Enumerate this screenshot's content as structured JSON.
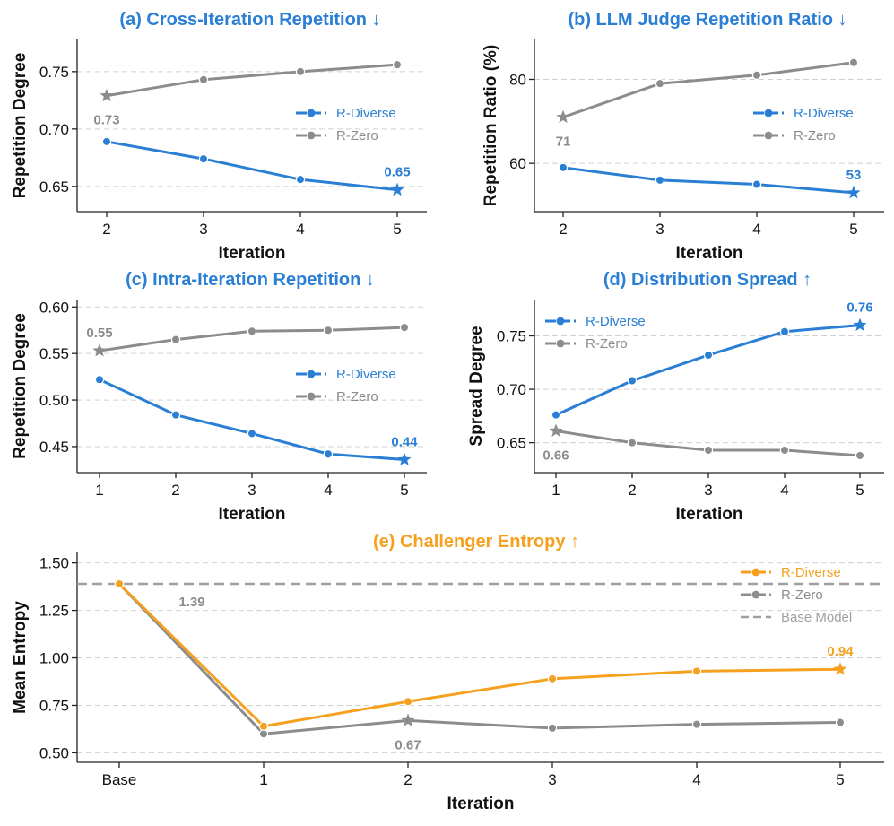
{
  "colors": {
    "diverse_blue": "#2a7fd4",
    "zero_gray": "#8c8c8c",
    "diverse_orange": "#f5a01e",
    "base_gray": "#a0a0a0",
    "grid": "#d0d0d0",
    "axis": "#222222"
  },
  "chart_data": [
    {
      "id": "a",
      "type": "line",
      "title": "(a) Cross-Iteration Repetition ↓",
      "title_color": "#2a7fd4",
      "xlabel": "Iteration",
      "ylabel": "Repetition Degree",
      "categories": [
        "2",
        "3",
        "4",
        "5"
      ],
      "ylim": [
        0.628,
        0.778
      ],
      "yticks": [
        0.65,
        0.7,
        0.75
      ],
      "ytick_labels": [
        "0.65",
        "0.70",
        "0.75"
      ],
      "series": [
        {
          "name": "R-Diverse",
          "color": "#2a7fd4",
          "values": [
            0.689,
            0.674,
            0.656,
            0.647
          ],
          "star_index": 3,
          "annotation": "0.65",
          "annotation_anchor": "above"
        },
        {
          "name": "R-Zero",
          "color": "#8c8c8c",
          "values": [
            0.729,
            0.743,
            0.75,
            0.756
          ],
          "star_index": 0,
          "annotation": "0.73",
          "annotation_anchor": "below"
        }
      ],
      "legend": [
        "R-Diverse",
        "R-Zero"
      ],
      "legend_position": "right"
    },
    {
      "id": "b",
      "type": "line",
      "title": "(b) LLM Judge Repetition Ratio ↓",
      "title_color": "#2a7fd4",
      "xlabel": "Iteration",
      "ylabel": "Repetition Ratio (%)",
      "categories": [
        "2",
        "3",
        "4",
        "5"
      ],
      "ylim": [
        48.5,
        89.5
      ],
      "yticks": [
        60,
        80
      ],
      "ytick_labels": [
        "60",
        "80"
      ],
      "series": [
        {
          "name": "R-Diverse",
          "color": "#2a7fd4",
          "values": [
            59,
            56,
            55,
            53
          ],
          "star_index": 3,
          "annotation": "53",
          "annotation_anchor": "above"
        },
        {
          "name": "R-Zero",
          "color": "#8c8c8c",
          "values": [
            71,
            79,
            81,
            84
          ],
          "star_index": 0,
          "annotation": "71",
          "annotation_anchor": "below"
        }
      ],
      "legend": [
        "R-Diverse",
        "R-Zero"
      ],
      "legend_position": "right"
    },
    {
      "id": "c",
      "type": "line",
      "title": "(c) Intra-Iteration Repetition ↓",
      "title_color": "#2a7fd4",
      "xlabel": "Iteration",
      "ylabel": "Repetition Degree",
      "categories": [
        "1",
        "2",
        "3",
        "4",
        "5"
      ],
      "ylim": [
        0.422,
        0.608
      ],
      "yticks": [
        0.45,
        0.5,
        0.55,
        0.6
      ],
      "ytick_labels": [
        "0.45",
        "0.50",
        "0.55",
        "0.60"
      ],
      "series": [
        {
          "name": "R-Diverse",
          "color": "#2a7fd4",
          "values": [
            0.522,
            0.484,
            0.464,
            0.442,
            0.436
          ],
          "star_index": 4,
          "annotation": "0.44",
          "annotation_anchor": "above"
        },
        {
          "name": "R-Zero",
          "color": "#8c8c8c",
          "values": [
            0.553,
            0.565,
            0.574,
            0.575,
            0.578
          ],
          "star_index": 0,
          "annotation": "0.55",
          "annotation_anchor": "above"
        }
      ],
      "legend": [
        "R-Diverse",
        "R-Zero"
      ],
      "legend_position": "right"
    },
    {
      "id": "d",
      "type": "line",
      "title": "(d) Distribution Spread ↑",
      "title_color": "#2a7fd4",
      "xlabel": "Iteration",
      "ylabel": "Spread Degree",
      "categories": [
        "1",
        "2",
        "3",
        "4",
        "5"
      ],
      "ylim": [
        0.622,
        0.784
      ],
      "yticks": [
        0.65,
        0.7,
        0.75
      ],
      "ytick_labels": [
        "0.65",
        "0.70",
        "0.75"
      ],
      "series": [
        {
          "name": "R-Diverse",
          "color": "#2a7fd4",
          "values": [
            0.676,
            0.708,
            0.732,
            0.754,
            0.76
          ],
          "star_index": 4,
          "annotation": "0.76",
          "annotation_anchor": "above"
        },
        {
          "name": "R-Zero",
          "color": "#8c8c8c",
          "values": [
            0.661,
            0.65,
            0.643,
            0.643,
            0.638
          ],
          "star_index": 0,
          "annotation": "0.66",
          "annotation_anchor": "below"
        }
      ],
      "legend": [
        "R-Diverse",
        "R-Zero"
      ],
      "legend_position": "left"
    },
    {
      "id": "e",
      "type": "line",
      "title": "(e) Challenger Entropy ↑",
      "title_color": "#f5a01e",
      "xlabel": "Iteration",
      "ylabel": "Mean Entropy",
      "categories": [
        "Base",
        "1",
        "2",
        "3",
        "4",
        "5"
      ],
      "ylim": [
        0.45,
        1.555
      ],
      "yticks": [
        0.5,
        0.75,
        1.0,
        1.25,
        1.5
      ],
      "ytick_labels": [
        "0.50",
        "0.75",
        "1.00",
        "1.25",
        "1.50"
      ],
      "series": [
        {
          "name": "R-Diverse",
          "color": "#f5a01e",
          "values": [
            1.39,
            0.64,
            0.77,
            0.89,
            0.93,
            0.94
          ],
          "star_index": 5,
          "annotation": "0.94",
          "annotation_anchor": "above"
        },
        {
          "name": "R-Zero",
          "color": "#8c8c8c",
          "values": [
            1.39,
            0.6,
            0.67,
            0.63,
            0.65,
            0.66
          ],
          "star_index": 2,
          "annotation": "0.67",
          "annotation_anchor": "below"
        }
      ],
      "baseline": {
        "name": "Base Model",
        "value": 1.39,
        "annotation": "1.39",
        "color": "#a0a0a0"
      },
      "legend": [
        "R-Diverse",
        "R-Zero",
        "Base Model"
      ],
      "legend_position": "right"
    }
  ]
}
